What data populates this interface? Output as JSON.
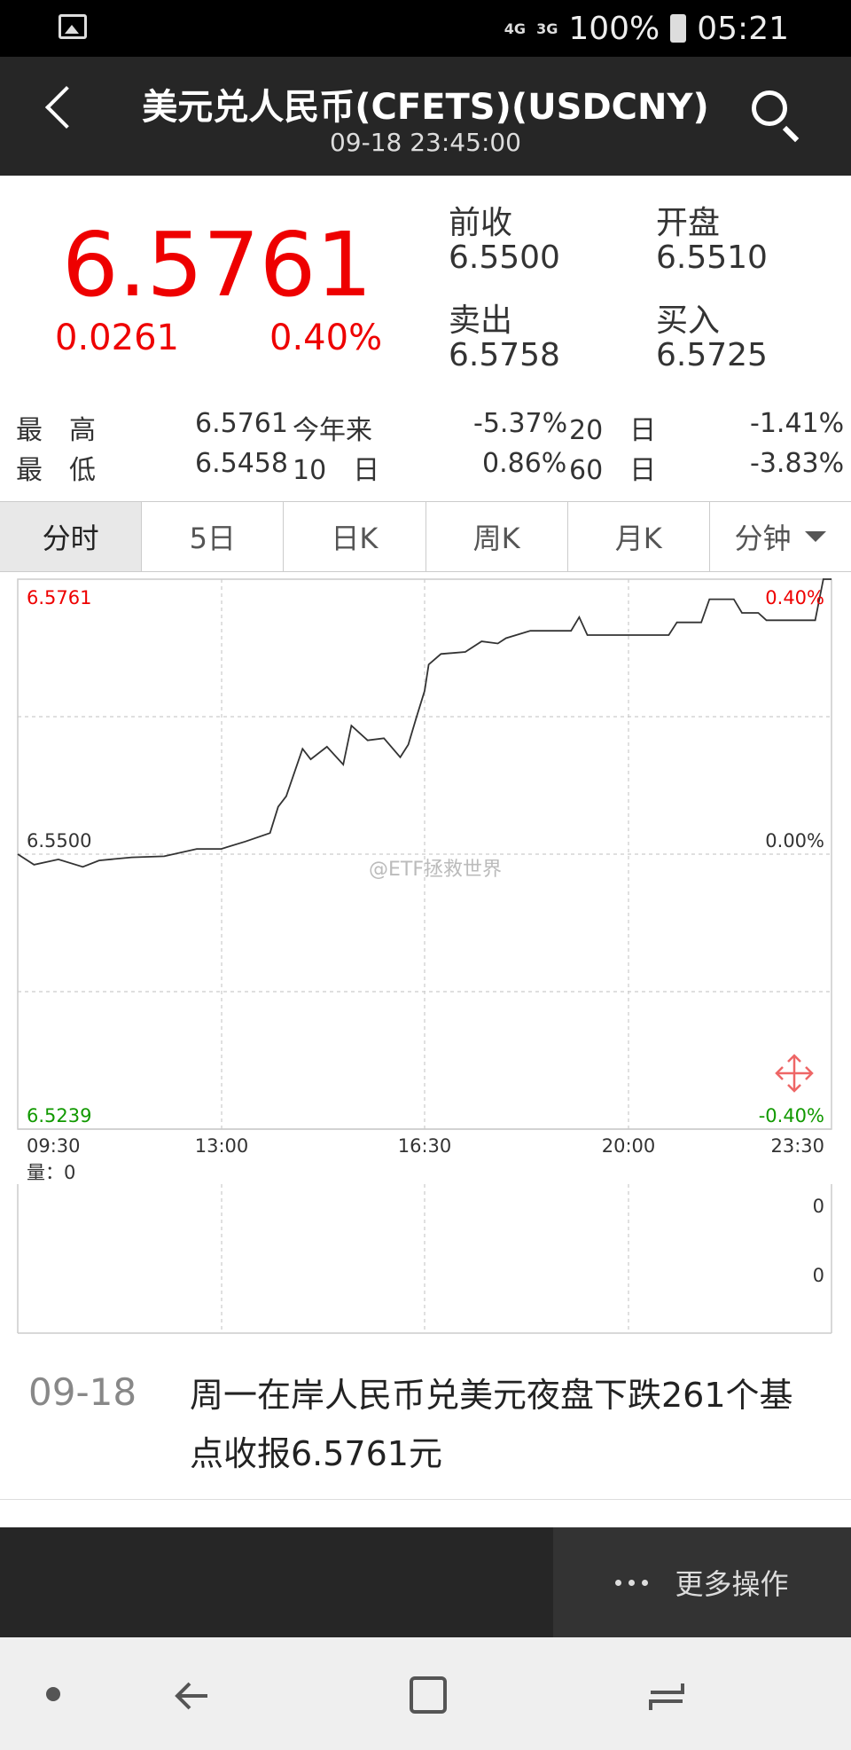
{
  "status_bar": {
    "net1": "4G",
    "net2": "3G",
    "sim": "1",
    "battery": "100%",
    "time": "05:21"
  },
  "header": {
    "title": "美元兑人民币(CFETS)(USDCNY)",
    "datetime": "09-18 23:45:00"
  },
  "quote": {
    "price": "6.5761",
    "change": "0.0261",
    "change_pct": "0.40%",
    "prev_close_label": "前收",
    "prev_close": "6.5500",
    "open_label": "开盘",
    "open": "6.5510",
    "ask_label": "卖出",
    "ask": "6.5758",
    "bid_label": "买入",
    "bid": "6.5725"
  },
  "stats": {
    "high_label": "最　高",
    "high": "6.5761",
    "low_label": "最　低",
    "low": "6.5458",
    "ytd_label": "今年来",
    "ytd": "-5.37%",
    "d10_label": "10　日",
    "d10": "0.86%",
    "d20_label": "20　日",
    "d20": "-1.41%",
    "d60_label": "60　日",
    "d60": "-3.83%"
  },
  "tabs": [
    "分时",
    "5日",
    "日K",
    "周K",
    "月K",
    "分钟"
  ],
  "chart_data": {
    "type": "line",
    "y_max_label": "6.5761",
    "y_mid_label": "6.5500",
    "y_min_label": "6.5239",
    "pct_max_label": "0.40%",
    "pct_mid_label": "0.00%",
    "pct_min_label": "-0.40%",
    "ylim": [
      6.5239,
      6.5761
    ],
    "x_ticks": [
      "09:30",
      "13:00",
      "16:30",
      "20:00",
      "23:30"
    ],
    "volume_label": "量：0",
    "volume_ticks": [
      "0",
      "0"
    ],
    "watermark": "@ETF拯救世界",
    "x": [
      0,
      0.02,
      0.05,
      0.08,
      0.1,
      0.14,
      0.18,
      0.22,
      0.25,
      0.28,
      0.31,
      0.32,
      0.33,
      0.35,
      0.36,
      0.38,
      0.4,
      0.41,
      0.43,
      0.45,
      0.47,
      0.48,
      0.49,
      0.5,
      0.505,
      0.52,
      0.55,
      0.57,
      0.59,
      0.6,
      0.63,
      0.66,
      0.68,
      0.69,
      0.7,
      0.72,
      0.8,
      0.81,
      0.84,
      0.85,
      0.86,
      0.88,
      0.89,
      0.91,
      0.92,
      0.94,
      0.97,
      0.98,
      0.99,
      1.0
    ],
    "y": [
      6.55,
      6.549,
      6.5495,
      6.5488,
      6.5494,
      6.5497,
      6.5498,
      6.5505,
      6.5505,
      6.5512,
      6.552,
      6.5545,
      6.5555,
      6.56,
      6.559,
      6.5602,
      6.5585,
      6.5622,
      6.5608,
      6.561,
      6.5592,
      6.5604,
      6.563,
      6.5655,
      6.568,
      6.569,
      6.5692,
      6.5702,
      6.57,
      6.5705,
      6.5712,
      6.5712,
      6.5712,
      6.5725,
      6.5708,
      6.5708,
      6.5708,
      6.572,
      6.572,
      6.5742,
      6.5742,
      6.5742,
      6.5729,
      6.5729,
      6.5722,
      6.5722,
      6.5722,
      6.5722,
      6.5761,
      6.5761
    ]
  },
  "news": {
    "date": "09-18",
    "text": "周一在岸人民币兑美元夜盘下跌261个基点收报6.5761元"
  },
  "bottom": {
    "more": "更多操作"
  }
}
